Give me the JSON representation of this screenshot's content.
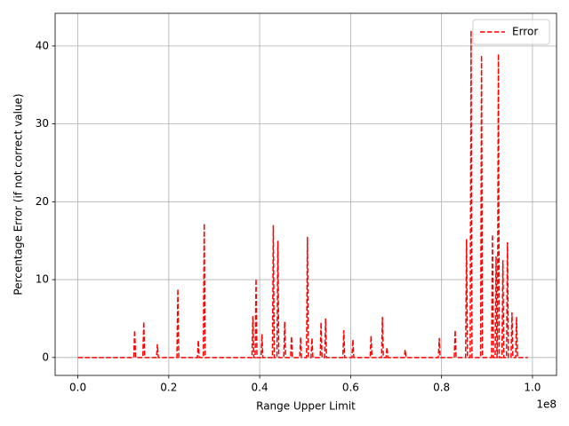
{
  "chart_data": {
    "type": "line",
    "xlabel": "Range Upper Limit",
    "ylabel": "Percentage Error (if not correct value)",
    "x_offset_label": "1e8",
    "x": [
      0,
      12300000,
      12500000,
      12700000,
      14300000,
      14500000,
      14700000,
      17300000,
      17500000,
      17700000,
      21800000,
      22000000,
      22200000,
      26300000,
      26500000,
      26700000,
      27600000,
      27800000,
      28000000,
      38300000,
      38500000,
      38700000,
      39000000,
      39200000,
      39400000,
      40300000,
      40500000,
      40700000,
      42800000,
      43000000,
      43200000,
      43800000,
      44000000,
      44200000,
      45300000,
      45500000,
      45700000,
      46800000,
      47000000,
      47200000,
      48800000,
      49000000,
      49200000,
      50300000,
      50500000,
      50700000,
      51300000,
      51500000,
      51700000,
      53300000,
      53500000,
      53700000,
      54300000,
      54500000,
      54700000,
      58300000,
      58500000,
      58700000,
      60300000,
      60500000,
      60700000,
      64300000,
      64500000,
      64700000,
      66800000,
      67000000,
      67200000,
      67800000,
      68000000,
      68200000,
      71800000,
      72000000,
      72200000,
      79300000,
      79500000,
      79700000,
      82800000,
      83000000,
      83200000,
      85300000,
      85500000,
      85700000,
      86300000,
      86500000,
      86700000,
      88600000,
      88800000,
      89000000,
      91000000,
      91200000,
      91400000,
      91800000,
      92000000,
      92200000,
      92300000,
      92500000,
      92700000,
      93300000,
      93500000,
      93700000,
      94300000,
      94500000,
      94700000,
      95300000,
      95500000,
      95700000,
      96300000,
      96500000,
      96700000,
      99000000
    ],
    "series": [
      {
        "name": "Error",
        "color": "#ff0000",
        "values": [
          0,
          0,
          3.5,
          0,
          0,
          4.6,
          0,
          0,
          1.7,
          0,
          0,
          8.8,
          0,
          0,
          2.2,
          0,
          0,
          17.2,
          0,
          0,
          5.3,
          0,
          0,
          10.1,
          0,
          0,
          3.0,
          0,
          0,
          17.0,
          0,
          0,
          15.0,
          0,
          0,
          4.6,
          0,
          0,
          2.7,
          0,
          0,
          2.6,
          0,
          0,
          15.5,
          0,
          0,
          2.5,
          0,
          0,
          4.5,
          0,
          0,
          5.0,
          0,
          0,
          3.5,
          0,
          0,
          2.3,
          0,
          0,
          2.8,
          0,
          0,
          5.2,
          0,
          0,
          1.3,
          0,
          0,
          1.0,
          0,
          0,
          2.5,
          0,
          0,
          3.5,
          0,
          0,
          15.2,
          0,
          0,
          42.0,
          0,
          0,
          38.8,
          0,
          0,
          15.8,
          0,
          0,
          13.0,
          0,
          0,
          39.0,
          0,
          0,
          12.5,
          0,
          0,
          14.8,
          0,
          0,
          5.8,
          0,
          0,
          5.2,
          0,
          0
        ]
      }
    ],
    "xlim": [
      -5000000,
      105300000
    ],
    "xticks": [
      {
        "value": 0,
        "label": "0.0"
      },
      {
        "value": 20000000,
        "label": "0.2"
      },
      {
        "value": 40000000,
        "label": "0.4"
      },
      {
        "value": 60000000,
        "label": "0.6"
      },
      {
        "value": 80000000,
        "label": "0.8"
      },
      {
        "value": 100000000,
        "label": "1.0"
      }
    ],
    "ylim": [
      -2.3,
      44.2
    ],
    "yticks": [
      0,
      10,
      20,
      30,
      40
    ],
    "grid": true,
    "legend": "upper right"
  }
}
